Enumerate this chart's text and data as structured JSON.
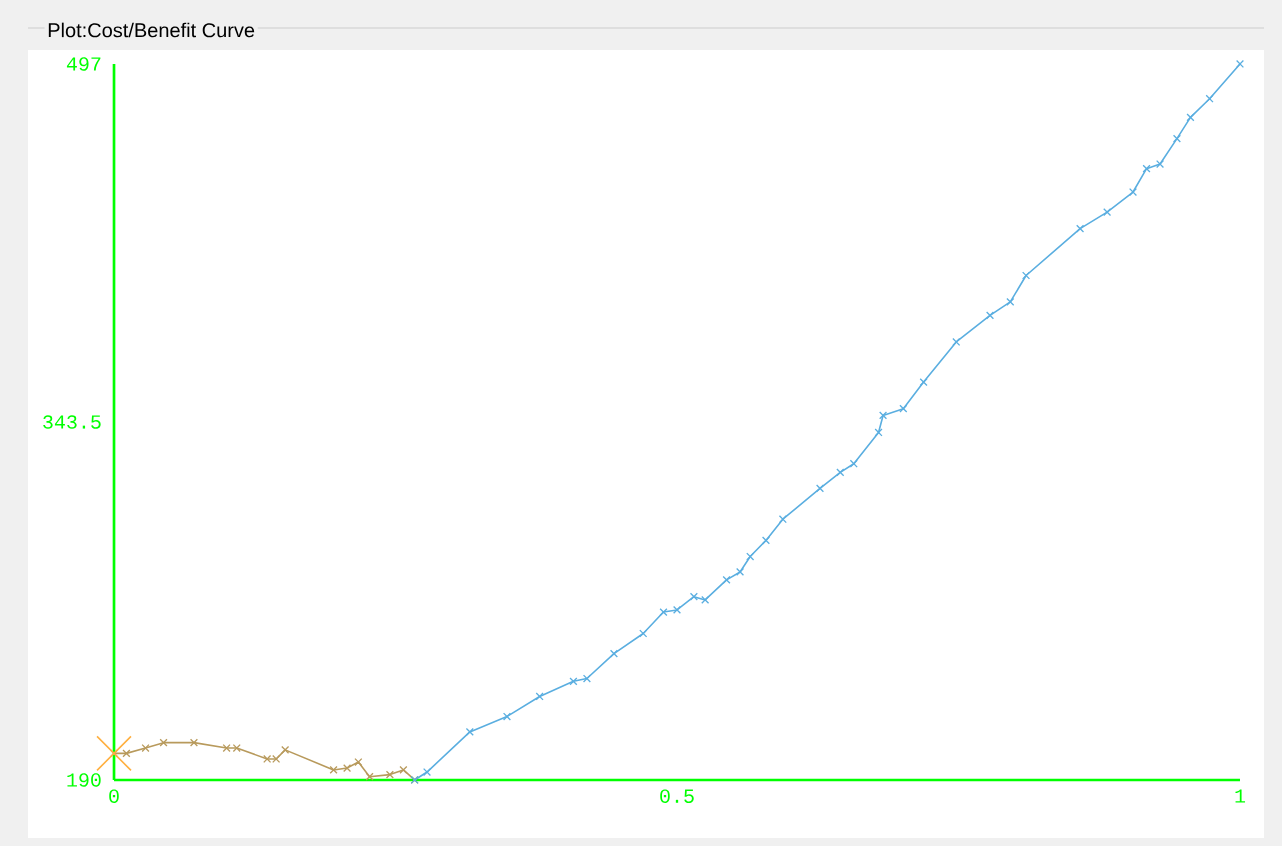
{
  "chart_data": {
    "type": "line",
    "title": "Plot:Cost/Benefit Curve",
    "xlim": [
      0,
      1
    ],
    "xticks": [
      0,
      0.5,
      1
    ],
    "ylim": [
      190,
      497
    ],
    "yticks": [
      190,
      343.5,
      497
    ],
    "grid": false,
    "marker": "cross",
    "series": [
      {
        "color": "#b89a5c",
        "x": [
          0.0,
          0.011,
          0.028,
          0.044,
          0.071,
          0.1,
          0.109,
          0.136,
          0.144,
          0.152,
          0.195,
          0.207,
          0.217,
          0.227,
          0.245,
          0.257,
          0.267
        ],
        "values": [
          201.4,
          201.4,
          203.7,
          206,
          206,
          203.7,
          203.7,
          199,
          199,
          202.9,
          194.3,
          195.1,
          197.7,
          191.4,
          192.3,
          194.3,
          190
        ]
      },
      {
        "color": "#5aaee0",
        "x": [
          0.267,
          0.278,
          0.316,
          0.349,
          0.378,
          0.408,
          0.42,
          0.444,
          0.47,
          0.488,
          0.5,
          0.515,
          0.525,
          0.544,
          0.556,
          0.565,
          0.579,
          0.594,
          0.627,
          0.645,
          0.657,
          0.679,
          0.683,
          0.701,
          0.719,
          0.748,
          0.778,
          0.796,
          0.81,
          0.858,
          0.882,
          0.905,
          0.917,
          0.929,
          0.944,
          0.956,
          0.973,
          1.0
        ],
        "values": [
          190,
          193.4,
          210.6,
          217.2,
          225.8,
          232.3,
          233.5,
          244.2,
          252.8,
          262,
          262.9,
          268.6,
          267.2,
          275.8,
          279.2,
          285.8,
          292.7,
          301.8,
          315,
          321.9,
          325.6,
          339,
          346.3,
          349.2,
          360.6,
          377.8,
          389.2,
          395,
          406.3,
          426.4,
          433.5,
          442.1,
          452.1,
          454.1,
          465,
          474.1,
          482.1,
          497
        ]
      },
      {
        "type": "scatter",
        "color": "#ffb040",
        "x": [
          0.0
        ],
        "values": [
          201.4
        ]
      }
    ]
  }
}
